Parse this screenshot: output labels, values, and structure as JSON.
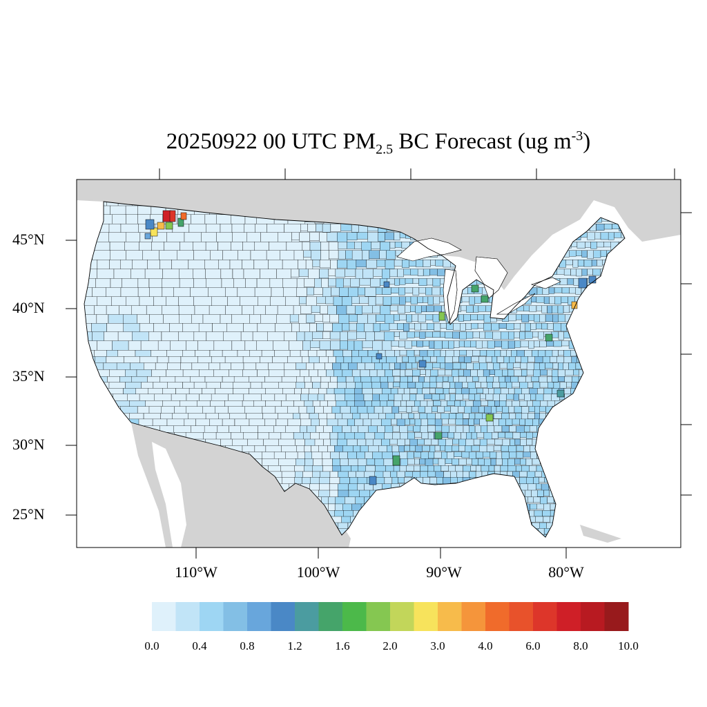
{
  "title": {
    "date_run": "20250922 00 UTC",
    "species": "PM",
    "subscript": "2.5",
    "product": "BC Forecast (ug m",
    "superscript": "-3",
    "close": ")"
  },
  "axes": {
    "lat_labels": [
      "45°N",
      "40°N",
      "35°N",
      "30°N",
      "25°N"
    ],
    "lon_labels": [
      "110°W",
      "100°W",
      "90°W",
      "80°W"
    ]
  },
  "colorbar": {
    "colors": [
      "#dff1fb",
      "#c1e4f7",
      "#9ed6f3",
      "#83bfe5",
      "#68a6dc",
      "#4a88c6",
      "#4b9ca0",
      "#45a46a",
      "#4cb94a",
      "#85c751",
      "#c2d65a",
      "#f7e35c",
      "#f7bb4b",
      "#f5953b",
      "#f06b2b",
      "#e8522b",
      "#dd362a",
      "#cf1f27",
      "#b81a21",
      "#981a1c"
    ],
    "labels": [
      "0.0",
      "0.4",
      "0.8",
      "1.2",
      "1.6",
      "2.0",
      "3.0",
      "4.0",
      "6.0",
      "8.0",
      "10.0"
    ]
  },
  "map": {
    "land_color": "#dff1fb",
    "neighbor_color": "#d3d3d3",
    "water_color": "#ffffff"
  }
}
